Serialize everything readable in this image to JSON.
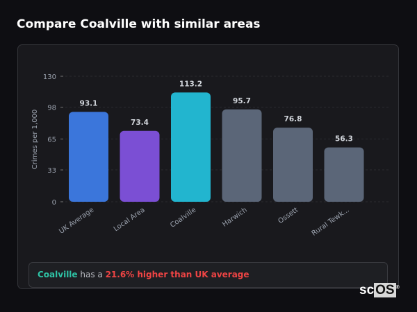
{
  "title": "Compare Coalville with similar areas",
  "chart_data": {
    "type": "bar",
    "categories": [
      "UK Average",
      "Local Area",
      "Coalville",
      "Harwich",
      "Ossett",
      "Rural Tewk..."
    ],
    "values": [
      93.1,
      73.4,
      113.2,
      95.7,
      76.8,
      56.3
    ],
    "value_labels": [
      "93.1",
      "73.4",
      "113.2",
      "95.7",
      "76.8",
      "56.3"
    ],
    "colors": [
      "#3b76db",
      "#7b4fd4",
      "#22b5cf",
      "#5b6678",
      "#5b6678",
      "#5b6678"
    ],
    "ylabel": "Crimes per 1,000",
    "yticks": [
      0,
      33,
      65,
      98,
      130
    ],
    "ylim": [
      0,
      130
    ],
    "grid": true
  },
  "info": {
    "area": "Coalville",
    "middle": " has a ",
    "highlight": "21.6% higher than UK average"
  },
  "watermark": "scOS"
}
